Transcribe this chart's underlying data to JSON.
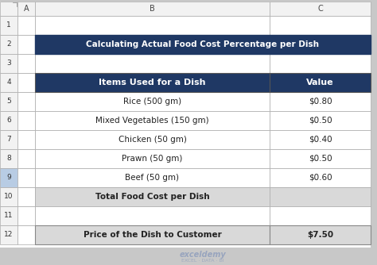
{
  "title": "Calculating Actual Food Cost Percentage per Dish",
  "title_bg": "#1F3864",
  "title_color": "#FFFFFF",
  "header_row": [
    "Items Used for a Dish",
    "Value"
  ],
  "header_bg": "#1F3864",
  "header_color": "#FFFFFF",
  "data_rows": [
    [
      "Rice (500 gm)",
      "$0.80"
    ],
    [
      "Mixed Vegetables (150 gm)",
      "$0.50"
    ],
    [
      "Chicken (50 gm)",
      "$0.40"
    ],
    [
      "Prawn (50 gm)",
      "$0.50"
    ],
    [
      "Beef (50 gm)",
      "$0.60"
    ]
  ],
  "total_row": [
    "Total Food Cost per Dish",
    ""
  ],
  "price_row": [
    "Price of the Dish to Customer",
    "$7.50"
  ],
  "data_bg": "#FFFFFF",
  "total_bg": "#D9D9D9",
  "price_bg": "#D9D9D9",
  "spreadsheet_bg": "#FFFFFF",
  "outer_bg": "#C8C8C8",
  "row_header_bg": "#F2F2F2",
  "col_header_bg": "#F2F2F2",
  "selected_row9_bg": "#B8CCE4",
  "grid_color": "#AAAAAA",
  "watermark": "exceldemy",
  "watermark_sub": "EXCEL · DATA · BI"
}
